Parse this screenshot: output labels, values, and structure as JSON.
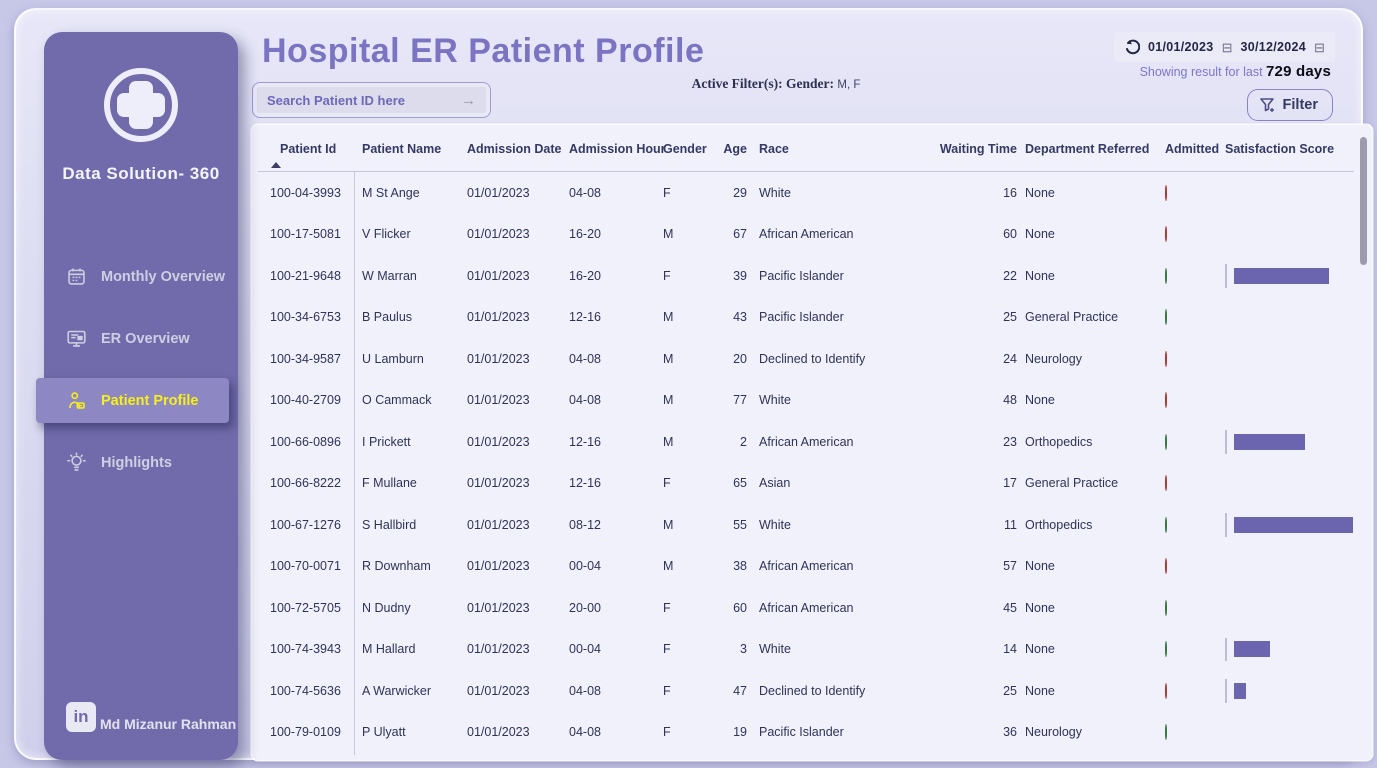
{
  "sidebar": {
    "brand": "Data Solution- 360",
    "items": [
      {
        "label": "Monthly Overview",
        "icon": "calendar-icon",
        "active": false
      },
      {
        "label": "ER Overview",
        "icon": "monitor-icon",
        "active": false
      },
      {
        "label": "Patient Profile",
        "icon": "patient-icon",
        "active": true
      },
      {
        "label": "Highlights",
        "icon": "bulb-icon",
        "active": false
      }
    ],
    "footer_name": "Md Mizanur Rahman",
    "footer_icon": "linkedin-icon"
  },
  "header": {
    "title": "Hospital ER Patient Profile",
    "date_from": "01/01/2023",
    "date_to": "30/12/2024",
    "showing_prefix": "Showing result for last ",
    "showing_days": "729 days",
    "search_placeholder": "Search Patient ID here",
    "search_arrow": "→",
    "active_filter_label": "Active Filter(s)",
    "active_filter_field": "Gender",
    "active_filter_value": "M, F",
    "filter_button_label": "Filter"
  },
  "table": {
    "columns": {
      "patient_id": "Patient Id",
      "patient_name": "Patient Name",
      "admission_date": "Admission Date",
      "admission_hour": "Admission Hour",
      "gender": "Gender",
      "age": "Age",
      "race": "Race",
      "waiting_time": "Waiting Time",
      "department_referred": "Department Referred",
      "admitted": "Admitted",
      "satisfaction_score": "Satisfaction Score"
    },
    "rows": [
      {
        "id": "100-04-3993",
        "name": "M St Ange",
        "date": "01/01/2023",
        "hour": "04-08",
        "gender": "F",
        "age": 29,
        "race": "White",
        "wait": 16,
        "dept": "None",
        "admitted": false,
        "score": null
      },
      {
        "id": "100-17-5081",
        "name": "V Flicker",
        "date": "01/01/2023",
        "hour": "16-20",
        "gender": "M",
        "age": 67,
        "race": "African American",
        "wait": 60,
        "dept": "None",
        "admitted": false,
        "score": null
      },
      {
        "id": "100-21-9648",
        "name": "W Marran",
        "date": "01/01/2023",
        "hour": "16-20",
        "gender": "F",
        "age": 39,
        "race": "Pacific Islander",
        "wait": 22,
        "dept": "None",
        "admitted": true,
        "score": 8
      },
      {
        "id": "100-34-6753",
        "name": "B Paulus",
        "date": "01/01/2023",
        "hour": "12-16",
        "gender": "M",
        "age": 43,
        "race": "Pacific Islander",
        "wait": 25,
        "dept": "General Practice",
        "admitted": true,
        "score": null
      },
      {
        "id": "100-34-9587",
        "name": "U Lamburn",
        "date": "01/01/2023",
        "hour": "04-08",
        "gender": "M",
        "age": 20,
        "race": "Declined to Identify",
        "wait": 24,
        "dept": "Neurology",
        "admitted": false,
        "score": null
      },
      {
        "id": "100-40-2709",
        "name": "O Cammack",
        "date": "01/01/2023",
        "hour": "04-08",
        "gender": "M",
        "age": 77,
        "race": "White",
        "wait": 48,
        "dept": "None",
        "admitted": false,
        "score": null
      },
      {
        "id": "100-66-0896",
        "name": "I Prickett",
        "date": "01/01/2023",
        "hour": "12-16",
        "gender": "M",
        "age": 2,
        "race": "African American",
        "wait": 23,
        "dept": "Orthopedics",
        "admitted": true,
        "score": 6
      },
      {
        "id": "100-66-8222",
        "name": "F Mullane",
        "date": "01/01/2023",
        "hour": "12-16",
        "gender": "F",
        "age": 65,
        "race": "Asian",
        "wait": 17,
        "dept": "General Practice",
        "admitted": false,
        "score": null
      },
      {
        "id": "100-67-1276",
        "name": "S Hallbird",
        "date": "01/01/2023",
        "hour": "08-12",
        "gender": "M",
        "age": 55,
        "race": "White",
        "wait": 11,
        "dept": "Orthopedics",
        "admitted": true,
        "score": 10
      },
      {
        "id": "100-70-0071",
        "name": "R Downham",
        "date": "01/01/2023",
        "hour": "00-04",
        "gender": "M",
        "age": 38,
        "race": "African American",
        "wait": 57,
        "dept": "None",
        "admitted": false,
        "score": null
      },
      {
        "id": "100-72-5705",
        "name": "N Dudny",
        "date": "01/01/2023",
        "hour": "20-00",
        "gender": "F",
        "age": 60,
        "race": "African American",
        "wait": 45,
        "dept": "None",
        "admitted": true,
        "score": null
      },
      {
        "id": "100-74-3943",
        "name": "M Hallard",
        "date": "01/01/2023",
        "hour": "00-04",
        "gender": "F",
        "age": 3,
        "race": "White",
        "wait": 14,
        "dept": "None",
        "admitted": true,
        "score": 3
      },
      {
        "id": "100-74-5636",
        "name": "A Warwicker",
        "date": "01/01/2023",
        "hour": "04-08",
        "gender": "F",
        "age": 47,
        "race": "Declined to Identify",
        "wait": 25,
        "dept": "None",
        "admitted": false,
        "score": 1
      },
      {
        "id": "100-79-0109",
        "name": "P Ulyatt",
        "date": "01/01/2023",
        "hour": "04-08",
        "gender": "F",
        "age": 19,
        "race": "Pacific Islander",
        "wait": 36,
        "dept": "Neurology",
        "admitted": true,
        "score": null
      }
    ]
  },
  "colors": {
    "sidebar_purple": "#716bab",
    "active_item_bg": "#8d87c3",
    "active_item_text": "#f7ef1a",
    "title_purple": "#7b74c2",
    "bar_purple": "#6b64ae",
    "admitted_green": "#58a35c",
    "not_admitted_red": "#e2574e"
  }
}
